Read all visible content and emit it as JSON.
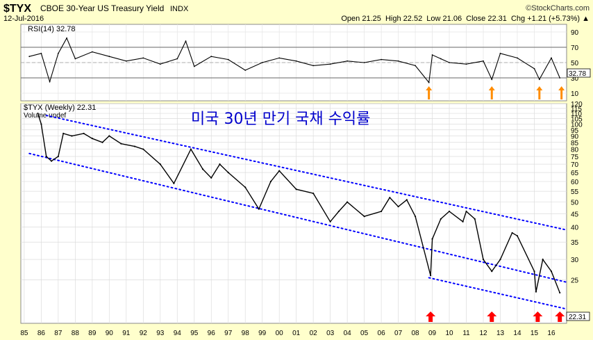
{
  "header": {
    "symbol": "$TYX",
    "description": "CBOE 30-Year US Treasury Yield",
    "exchange": "INDX",
    "date": "12-Jul-2016",
    "brand": "©StockCharts.com",
    "quote": "Open 21.25  High 22.52  Low 21.06  Close 22.31  Chg +1.21 (+5.73%) ▲"
  },
  "annotation": "미국 30년 만기 국채 수익률",
  "colors": {
    "background": "#ffffcc",
    "price_line": "#000000",
    "channel": "#0000ff",
    "signal_arrow_up_rsi": "#ff8c00",
    "signal_arrow_up_price": "#ff0000"
  },
  "chart_data": [
    {
      "type": "line",
      "panel": "rsi",
      "label": "RSI(14) 32.78",
      "current_value": "32.78",
      "ylim": [
        0,
        100
      ],
      "yticks": [
        "90",
        "70",
        "50",
        "30",
        "10"
      ],
      "reference_levels": [
        70,
        30
      ],
      "x_years": [
        1985.3,
        1986.0,
        1986.5,
        1987.0,
        1987.5,
        1988.0,
        1989.0,
        1990.0,
        1991.0,
        1992.0,
        1993.0,
        1994.0,
        1994.5,
        1995.0,
        1996.0,
        1997.0,
        1998.0,
        1999.0,
        2000.0,
        2001.0,
        2002.0,
        2003.0,
        2004.0,
        2005.0,
        2006.0,
        2007.0,
        2008.0,
        2008.8,
        2009.0,
        2009.5,
        2010.0,
        2011.0,
        2012.0,
        2012.5,
        2013.0,
        2014.0,
        2015.0,
        2015.3,
        2016.0,
        2016.5
      ],
      "values": [
        58,
        62,
        25,
        62,
        82,
        55,
        64,
        58,
        52,
        56,
        48,
        55,
        78,
        45,
        58,
        54,
        40,
        50,
        56,
        52,
        46,
        48,
        52,
        50,
        54,
        52,
        46,
        24,
        60,
        55,
        50,
        48,
        52,
        28,
        62,
        56,
        42,
        28,
        56,
        30
      ],
      "signal_arrows_at": [
        2008.8,
        2012.5,
        2015.3,
        2016.6
      ]
    },
    {
      "type": "line",
      "panel": "price",
      "label": "$TYX (Weekly) 22.31",
      "sublabel": "Volume undef",
      "current_value": "22.31",
      "ylim": [
        17,
        120
      ],
      "log_scale": true,
      "yticks": [
        "120",
        "115",
        "110",
        "105",
        "100",
        "95",
        "90",
        "85",
        "80",
        "75",
        "70",
        "65",
        "60",
        "55",
        "50",
        "45",
        "40",
        "35",
        "30",
        "25"
      ],
      "xticks": [
        "85",
        "86",
        "87",
        "88",
        "89",
        "90",
        "91",
        "92",
        "93",
        "94",
        "95",
        "96",
        "97",
        "98",
        "99",
        "00",
        "01",
        "02",
        "03",
        "04",
        "05",
        "06",
        "07",
        "08",
        "09",
        "10",
        "11",
        "12",
        "13",
        "14",
        "15",
        "16"
      ],
      "x_years": [
        1985.8,
        1986.0,
        1986.3,
        1986.6,
        1987.0,
        1987.3,
        1987.8,
        1988.5,
        1989.0,
        1989.6,
        1990.0,
        1990.7,
        1991.5,
        1992.0,
        1993.0,
        1993.8,
        1994.8,
        1995.5,
        1996.0,
        1996.5,
        1997.0,
        1998.0,
        1998.8,
        1999.5,
        2000.0,
        2001.0,
        2002.0,
        2003.0,
        2003.5,
        2004.0,
        2005.0,
        2006.0,
        2006.5,
        2007.0,
        2007.5,
        2008.0,
        2008.9,
        2009.0,
        2009.5,
        2010.0,
        2010.8,
        2011.0,
        2011.5,
        2012.0,
        2012.5,
        2013.0,
        2013.7,
        2014.0,
        2015.0,
        2015.1,
        2015.5,
        2016.0,
        2016.5
      ],
      "values": [
        110,
        100,
        75,
        72,
        75,
        92,
        90,
        92,
        88,
        85,
        90,
        84,
        82,
        80,
        70,
        59,
        80,
        67,
        62,
        70,
        65,
        57,
        47,
        60,
        66,
        56,
        54,
        42,
        46,
        50,
        44,
        46,
        52,
        48,
        51,
        44,
        26,
        36,
        43,
        46,
        42,
        46,
        43,
        30,
        27,
        30,
        38,
        37,
        27,
        22.5,
        30,
        27,
        22.31
      ],
      "channel_lines": [
        {
          "label": "upper",
          "points": [
            [
              1986.3,
              108
            ],
            [
              2016.9,
              39
            ]
          ]
        },
        {
          "label": "lower",
          "points": [
            [
              1985.3,
              77
            ],
            [
              2016.9,
              24.5
            ]
          ]
        },
        {
          "label": "support",
          "points": [
            [
              2008.8,
              25.5
            ],
            [
              2016.9,
              19.3
            ]
          ]
        }
      ],
      "signal_arrows_at": [
        2008.9,
        2012.5,
        2015.2,
        2016.5
      ]
    }
  ]
}
